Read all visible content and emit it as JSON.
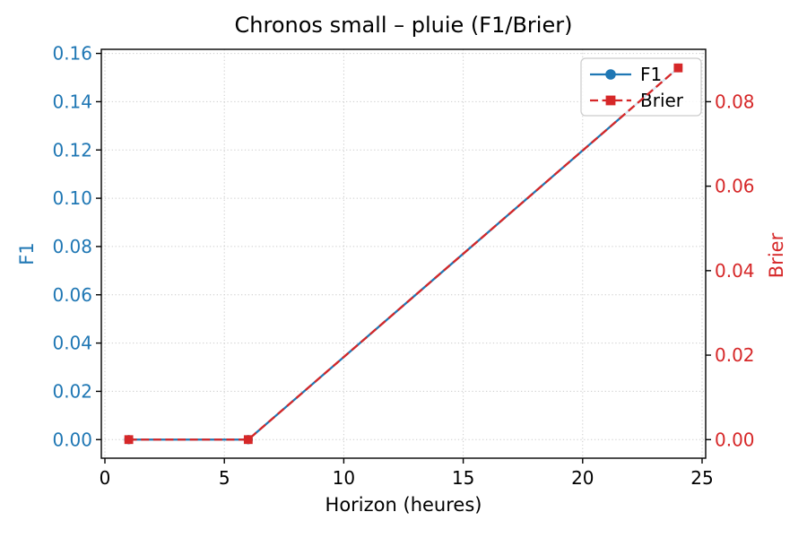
{
  "chart_data": {
    "type": "line",
    "title": "Chronos small – pluie (F1/Brier)",
    "xlabel": "Horizon (heures)",
    "x": [
      1,
      6,
      24
    ],
    "series": [
      {
        "name": "F1",
        "axis": "left",
        "color": "#1f77b4",
        "linestyle": "solid",
        "marker": "circle",
        "values": [
          0.0,
          0.0,
          0.154
        ]
      },
      {
        "name": "Brier",
        "axis": "right",
        "color": "#d62728",
        "linestyle": "dashed",
        "marker": "square",
        "values": [
          0.0,
          0.0,
          0.088
        ]
      }
    ],
    "x_axis": {
      "ticks": [
        0,
        5,
        10,
        15,
        20,
        25
      ],
      "lim": [
        -0.15,
        25.15
      ]
    },
    "left_axis": {
      "label": "F1",
      "color": "#1f77b4",
      "tick_labels": [
        "0.00",
        "0.02",
        "0.04",
        "0.06",
        "0.08",
        "0.10",
        "0.12",
        "0.14",
        "0.16"
      ],
      "tick_values": [
        0,
        0.02,
        0.04,
        0.06,
        0.08,
        0.1,
        0.12,
        0.14,
        0.16
      ],
      "lim": [
        -0.0077,
        0.1617
      ]
    },
    "right_axis": {
      "label": "Brier",
      "color": "#d62728",
      "tick_labels": [
        "0.00",
        "0.02",
        "0.04",
        "0.06",
        "0.08"
      ],
      "tick_values": [
        0,
        0.02,
        0.04,
        0.06,
        0.08
      ],
      "lim": [
        -0.0044,
        0.0924
      ]
    },
    "legend": {
      "entries": [
        "F1",
        "Brier"
      ],
      "position": "upper right"
    },
    "grid": true,
    "grid_color": "#cccccc",
    "spine_color": "#000000",
    "background": "#ffffff"
  }
}
